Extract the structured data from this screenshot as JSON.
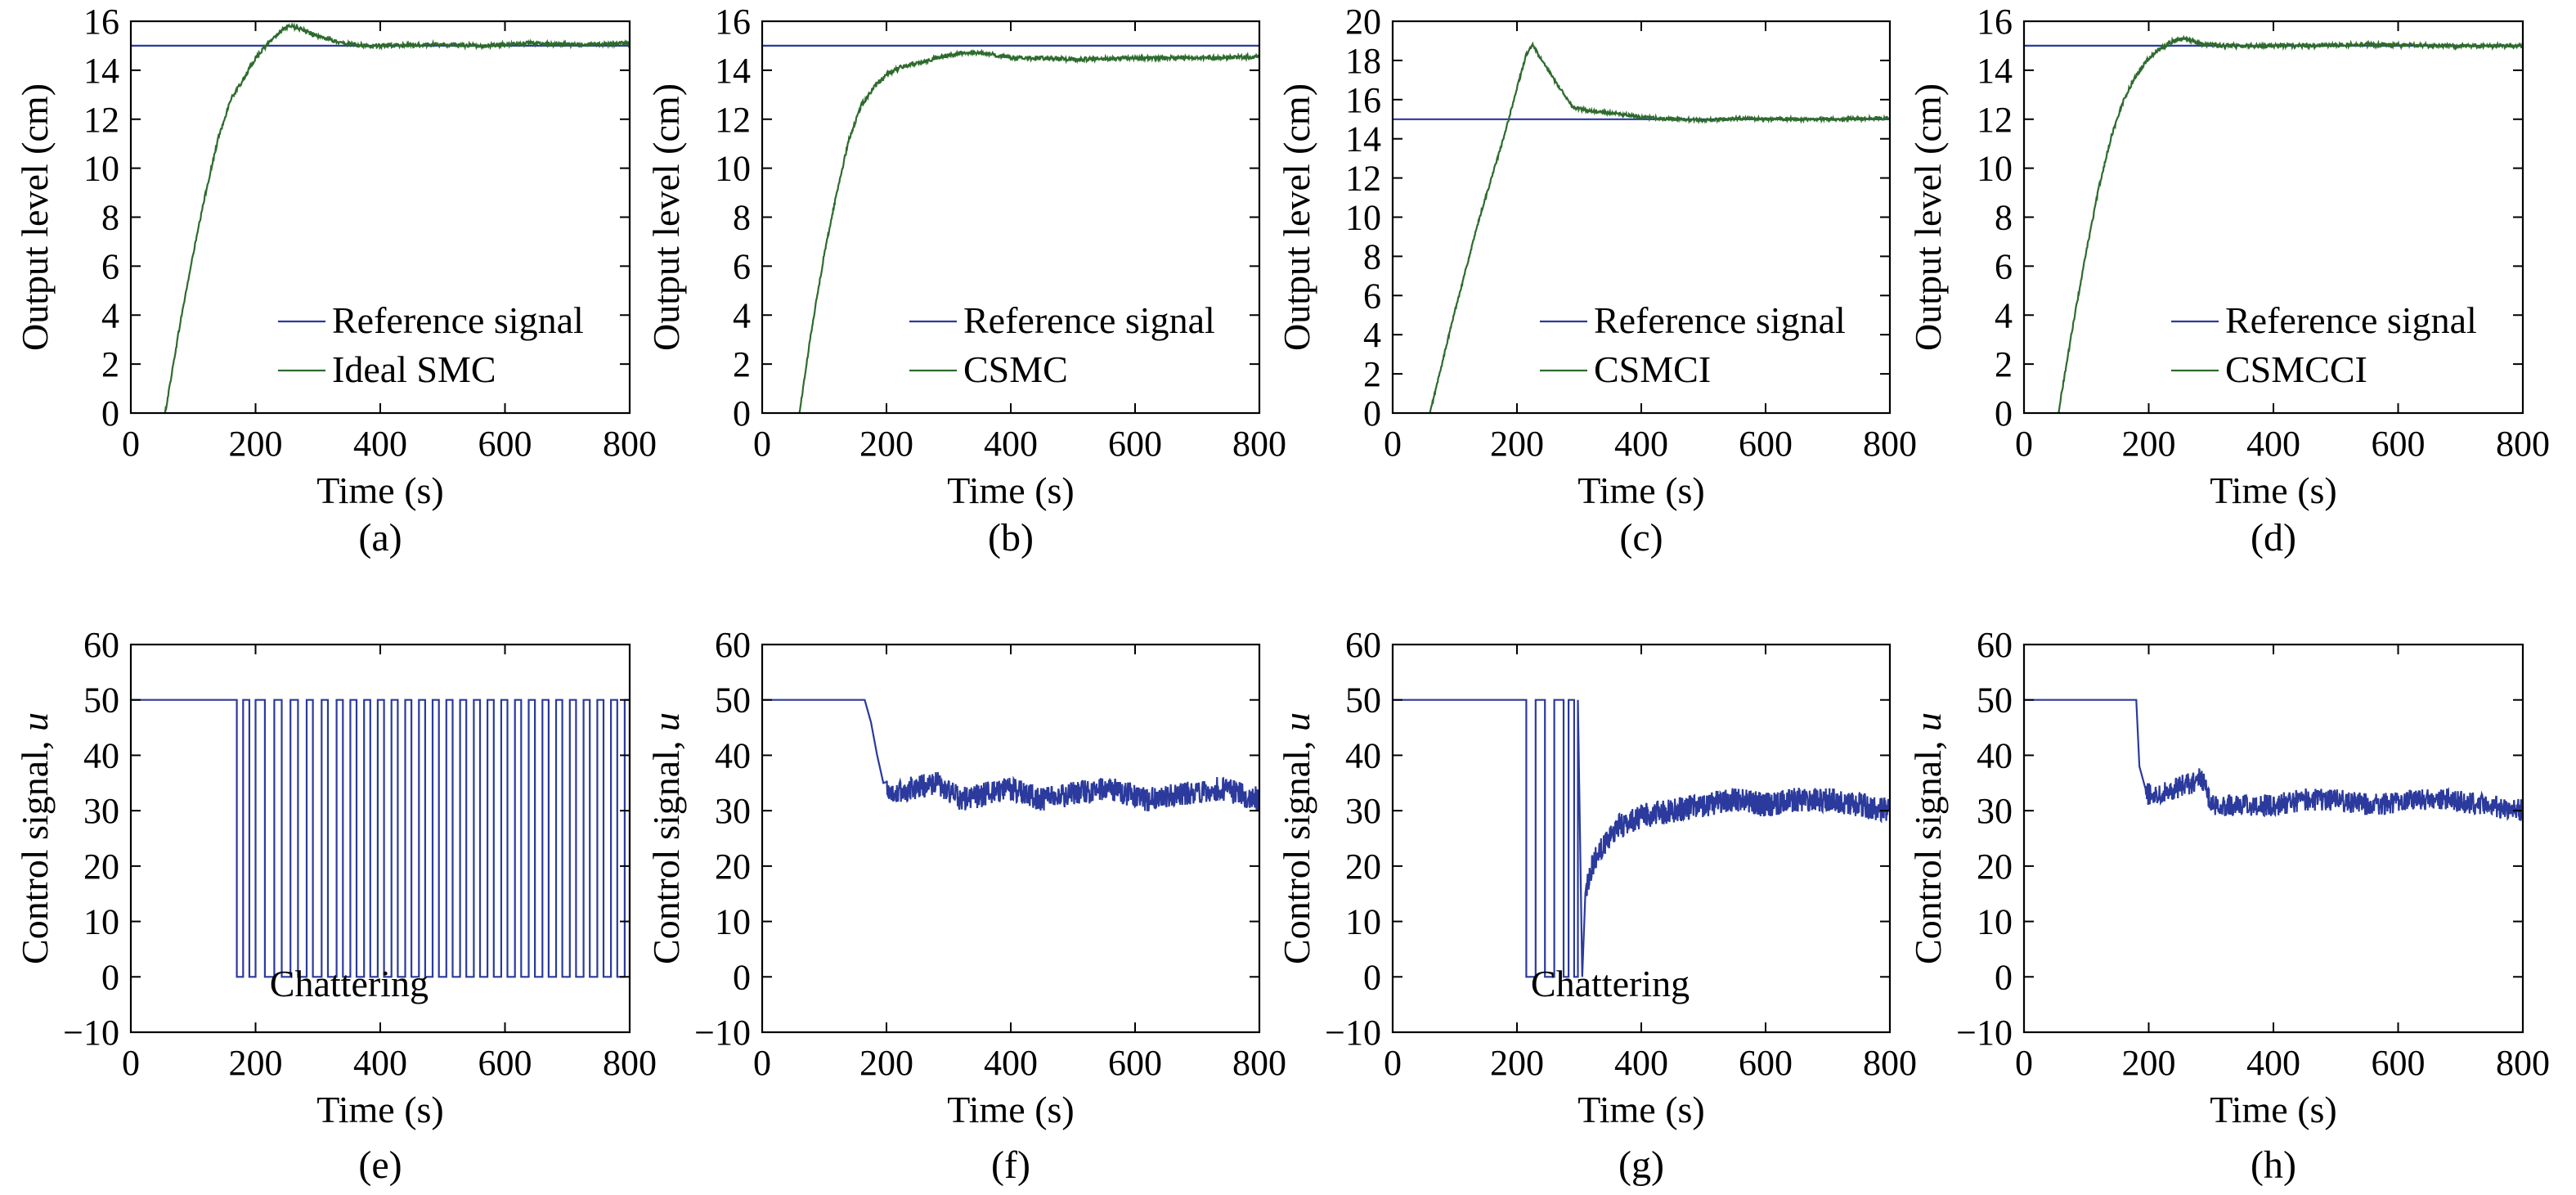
{
  "chart_data": [
    {
      "panel": "(a)",
      "type": "line",
      "xlabel": "Time (s)",
      "ylabel": "Output level (cm)",
      "xlim": [
        0,
        800
      ],
      "ylim": [
        0,
        16
      ],
      "xticks": [
        0,
        200,
        400,
        600,
        800
      ],
      "yticks": [
        0,
        2,
        4,
        6,
        8,
        10,
        12,
        14,
        16
      ],
      "legend_position": "bottom-right",
      "series": [
        {
          "name": "Reference signal",
          "color": "#2b3a9c",
          "x": [
            0,
            800
          ],
          "y": [
            15,
            15
          ]
        },
        {
          "name": "Ideal SMC",
          "color": "#2e6b2e",
          "x": [
            55,
            80,
            100,
            120,
            140,
            160,
            180,
            200,
            220,
            240,
            255,
            270,
            290,
            310,
            340,
            380,
            420,
            480,
            560,
            640,
            720,
            800
          ],
          "y": [
            0,
            3.8,
            6.5,
            9.0,
            11.2,
            12.8,
            13.6,
            14.5,
            15.1,
            15.6,
            15.8,
            15.7,
            15.5,
            15.3,
            15.1,
            15.0,
            15.0,
            15.05,
            15.0,
            15.1,
            15.05,
            15.1
          ],
          "noise": 0.08
        }
      ]
    },
    {
      "panel": "(b)",
      "type": "line",
      "xlabel": "Time (s)",
      "ylabel": "Output level (cm)",
      "xlim": [
        0,
        800
      ],
      "ylim": [
        0,
        16
      ],
      "xticks": [
        0,
        200,
        400,
        600,
        800
      ],
      "yticks": [
        0,
        2,
        4,
        6,
        8,
        10,
        12,
        14,
        16
      ],
      "legend_position": "bottom-right",
      "series": [
        {
          "name": "Reference signal",
          "color": "#2b3a9c",
          "x": [
            0,
            800
          ],
          "y": [
            15,
            15
          ]
        },
        {
          "name": "CSMC",
          "color": "#2e6b2e",
          "x": [
            60,
            80,
            100,
            120,
            140,
            160,
            180,
            200,
            220,
            250,
            280,
            320,
            360,
            400,
            450,
            500,
            600,
            700,
            800
          ],
          "y": [
            0,
            3.5,
            6.5,
            9.0,
            11.2,
            12.6,
            13.3,
            13.8,
            14.1,
            14.3,
            14.5,
            14.7,
            14.7,
            14.5,
            14.5,
            14.45,
            14.5,
            14.5,
            14.55
          ],
          "noise": 0.08
        }
      ]
    },
    {
      "panel": "(c)",
      "type": "line",
      "xlabel": "Time (s)",
      "ylabel": "Output level (cm)",
      "xlim": [
        0,
        800
      ],
      "ylim": [
        0,
        20
      ],
      "xticks": [
        0,
        200,
        400,
        600,
        800
      ],
      "yticks": [
        0,
        2,
        4,
        6,
        8,
        10,
        12,
        14,
        16,
        18,
        20
      ],
      "legend_position": "bottom-right",
      "series": [
        {
          "name": "Reference signal",
          "color": "#2b3a9c",
          "x": [
            0,
            800
          ],
          "y": [
            15,
            15
          ]
        },
        {
          "name": "CSMCI",
          "color": "#2e6b2e",
          "x": [
            60,
            100,
            140,
            180,
            200,
            215,
            225,
            240,
            260,
            280,
            290,
            320,
            360,
            400,
            450,
            500,
            560,
            600,
            700,
            800
          ],
          "y": [
            0,
            5.2,
            10.0,
            14.2,
            16.6,
            18.3,
            18.8,
            18.0,
            17.0,
            16.1,
            15.6,
            15.4,
            15.3,
            15.1,
            15.0,
            14.95,
            15.05,
            15.0,
            15.0,
            15.05
          ],
          "noise": 0.08
        }
      ]
    },
    {
      "panel": "(d)",
      "type": "line",
      "xlabel": "Time (s)",
      "ylabel": "Output level (cm)",
      "xlim": [
        0,
        800
      ],
      "ylim": [
        0,
        16
      ],
      "xticks": [
        0,
        200,
        400,
        600,
        800
      ],
      "yticks": [
        0,
        2,
        4,
        6,
        8,
        10,
        12,
        14,
        16
      ],
      "legend_position": "bottom-right",
      "series": [
        {
          "name": "Reference signal",
          "color": "#2b3a9c",
          "x": [
            0,
            800
          ],
          "y": [
            15,
            15
          ]
        },
        {
          "name": "CSMCCI",
          "color": "#2e6b2e",
          "x": [
            55,
            80,
            100,
            120,
            140,
            160,
            180,
            200,
            220,
            240,
            260,
            280,
            320,
            380,
            450,
            550,
            650,
            800
          ],
          "y": [
            0,
            3.8,
            6.6,
            9.2,
            11.3,
            12.8,
            13.8,
            14.5,
            14.9,
            15.2,
            15.3,
            15.1,
            15.0,
            15.0,
            15.0,
            15.05,
            15.0,
            15.0
          ],
          "noise": 0.08
        }
      ]
    },
    {
      "panel": "(e)",
      "type": "line",
      "xlabel": "Time (s)",
      "ylabel": "Control signal, u",
      "xlim": [
        0,
        800
      ],
      "ylim": [
        -10,
        60
      ],
      "xticks": [
        0,
        200,
        400,
        600,
        800
      ],
      "yticks": [
        -10,
        0,
        10,
        20,
        30,
        40,
        50,
        60
      ],
      "annotation": "Chattering",
      "series": [
        {
          "color": "#2b3a9c",
          "style": "chattering",
          "x": [
            0,
            170,
            180,
            190,
            200,
            215,
            230,
            242,
            256,
            268,
            282,
            292,
            306,
            316,
            330,
            340,
            352,
            362,
            374,
            384,
            396,
            406,
            418,
            428,
            440,
            450,
            462,
            472,
            484,
            494,
            506,
            516,
            528,
            538,
            550,
            560,
            572,
            582,
            594,
            604,
            616,
            626,
            638,
            648,
            660,
            670,
            682,
            692,
            704,
            714,
            726,
            736,
            748,
            758,
            770,
            780,
            792,
            800
          ],
          "y": [
            50,
            0,
            50,
            0,
            50,
            0,
            50,
            0,
            50,
            0,
            50,
            0,
            50,
            0,
            50,
            0,
            50,
            0,
            50,
            0,
            50,
            0,
            50,
            0,
            50,
            0,
            50,
            0,
            50,
            0,
            50,
            0,
            50,
            0,
            50,
            0,
            50,
            0,
            50,
            0,
            50,
            0,
            50,
            0,
            50,
            0,
            50,
            0,
            50,
            0,
            50,
            0,
            50,
            0,
            50,
            0,
            50,
            0
          ]
        }
      ]
    },
    {
      "panel": "(f)",
      "type": "line",
      "xlabel": "Time (s)",
      "ylabel": "Control signal, u",
      "xlim": [
        0,
        800
      ],
      "ylim": [
        -10,
        60
      ],
      "xticks": [
        0,
        200,
        400,
        600,
        800
      ],
      "yticks": [
        -10,
        0,
        10,
        20,
        30,
        40,
        50,
        60
      ],
      "series": [
        {
          "color": "#2b3a9c",
          "x": [
            0,
            165,
            175,
            185,
            195,
            210,
            240,
            280,
            320,
            360,
            400,
            450,
            500,
            560,
            620,
            680,
            740,
            800
          ],
          "y": [
            50,
            50,
            46,
            40,
            35,
            33,
            34,
            35,
            32,
            33,
            34,
            32,
            33,
            34,
            32,
            33,
            34,
            32
          ],
          "noise": 2.2,
          "noise_after": 200
        }
      ]
    },
    {
      "panel": "(g)",
      "type": "line",
      "xlabel": "Time (s)",
      "ylabel": "Control signal, u",
      "xlim": [
        0,
        800
      ],
      "ylim": [
        -10,
        60
      ],
      "xticks": [
        0,
        200,
        400,
        600,
        800
      ],
      "yticks": [
        -10,
        0,
        10,
        20,
        30,
        40,
        50,
        60
      ],
      "annotation": "Chattering",
      "series": [
        {
          "color": "#2b3a9c",
          "x": [
            0,
            215,
            215,
            230,
            230,
            245,
            245,
            260,
            260,
            275,
            275,
            283,
            283,
            292,
            292,
            298,
            298,
            305,
            310,
            320,
            340,
            360,
            380,
            400,
            450,
            500,
            550,
            600,
            650,
            700,
            750,
            800
          ],
          "y": [
            50,
            50,
            0,
            0,
            50,
            50,
            0,
            0,
            50,
            50,
            0,
            0,
            50,
            50,
            0,
            0,
            50,
            0,
            15,
            20,
            24,
            27,
            28,
            29,
            30,
            31,
            32,
            31,
            32,
            32,
            31,
            30
          ],
          "noise": 2.2,
          "noise_after": 312
        }
      ]
    },
    {
      "panel": "(h)",
      "type": "line",
      "xlabel": "Time (s)",
      "ylabel": "Control signal, u",
      "xlim": [
        0,
        800
      ],
      "ylim": [
        -10,
        60
      ],
      "xticks": [
        0,
        200,
        400,
        600,
        800
      ],
      "yticks": [
        -10,
        0,
        10,
        20,
        30,
        40,
        50,
        60
      ],
      "series": [
        {
          "color": "#2b3a9c",
          "x": [
            0,
            180,
            185,
            195,
            210,
            240,
            270,
            285,
            300,
            340,
            400,
            450,
            500,
            560,
            620,
            680,
            740,
            800
          ],
          "y": [
            50,
            50,
            38,
            33,
            33,
            34,
            35,
            36,
            31,
            31,
            31,
            32,
            32,
            31,
            32,
            32,
            31,
            30
          ],
          "noise": 2.0,
          "noise_after": 195
        }
      ]
    }
  ]
}
